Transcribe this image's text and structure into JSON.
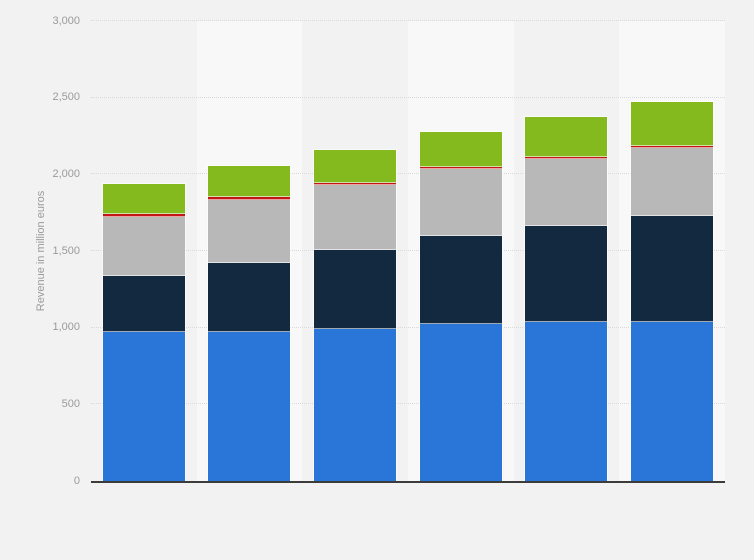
{
  "chart_data": {
    "type": "bar",
    "stacked": true,
    "orientation": "vertical",
    "title": "",
    "xlabel": "",
    "ylabel": "Revenue in million euros",
    "ylim": [
      0,
      3000
    ],
    "yticks": [
      0,
      500,
      1000,
      1500,
      2000,
      2500,
      3000
    ],
    "ytick_labels": [
      "0",
      "500",
      "1,000",
      "1,500",
      "2,000",
      "2,500",
      "3,000"
    ],
    "grid": "horizontal-dotted",
    "legend_visible": false,
    "x_tick_labels_visible": false,
    "num_bars": 6,
    "categories": [
      "bar-1",
      "bar-2",
      "bar-3",
      "bar-4",
      "bar-5",
      "bar-6"
    ],
    "series": [
      {
        "name": "blue",
        "color": "#2a75d8",
        "values": [
          975,
          975,
          990,
          1025,
          1035,
          1040
        ]
      },
      {
        "name": "dark-navy",
        "color": "#13293f",
        "values": [
          365,
          450,
          515,
          575,
          630,
          690
        ]
      },
      {
        "name": "gray",
        "color": "#b8b8b8",
        "values": [
          385,
          410,
          425,
          435,
          435,
          440
        ]
      },
      {
        "name": "red",
        "color": "#c31717",
        "values": [
          15,
          15,
          15,
          15,
          12,
          15
        ]
      },
      {
        "name": "green",
        "color": "#84ba1e",
        "values": [
          195,
          205,
          215,
          225,
          265,
          290
        ]
      }
    ],
    "totals": [
      1935,
      2055,
      2160,
      2275,
      2377,
      2475
    ]
  },
  "colors": {
    "page_bg": "#f2f2f2",
    "band_alt_bg": "#f8f8f8",
    "axis_line": "#3c3c3c",
    "gridline": "#d9d9d9",
    "tick_text": "#9b9b9b",
    "segment_border": "rgba(255,255,255,0.6)"
  }
}
